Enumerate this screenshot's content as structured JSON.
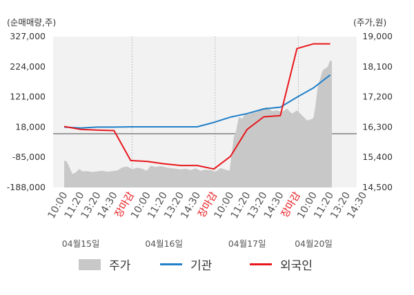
{
  "chart_data": {
    "type": "line",
    "left_axis": {
      "unit": "(순매매량,주)",
      "ticks": [
        "327,000",
        "224,000",
        "121,000",
        "18,000",
        "-85,000",
        "-188,000"
      ],
      "ylim": [
        -188000,
        327000
      ]
    },
    "right_axis": {
      "unit": "(주가,원)",
      "ticks": [
        "19,000",
        "18,100",
        "17,200",
        "16,300",
        "15,400",
        "14,500"
      ],
      "ylim": [
        14500,
        19000
      ]
    },
    "x_ticks": [
      {
        "label": "10:00",
        "red": false
      },
      {
        "label": "11:20",
        "red": false
      },
      {
        "label": "13:20",
        "red": false
      },
      {
        "label": "14:30",
        "red": false
      },
      {
        "label": "장마감",
        "red": true
      },
      {
        "label": "10:00",
        "red": false
      },
      {
        "label": "11:20",
        "red": false
      },
      {
        "label": "13:20",
        "red": false
      },
      {
        "label": "14:30",
        "red": false
      },
      {
        "label": "장마감",
        "red": true
      },
      {
        "label": "10:00",
        "red": false
      },
      {
        "label": "11:20",
        "red": false
      },
      {
        "label": "13:20",
        "red": false
      },
      {
        "label": "14:30",
        "red": false
      },
      {
        "label": "장마감",
        "red": true
      },
      {
        "label": "10:00",
        "red": false
      },
      {
        "label": "11:20",
        "red": false
      },
      {
        "label": "13:20",
        "red": false
      },
      {
        "label": "14:30",
        "red": false
      }
    ],
    "dates": [
      {
        "label": "04월15일",
        "x_index": 1
      },
      {
        "label": "04월16일",
        "x_index": 6
      },
      {
        "label": "04월17일",
        "x_index": 11
      },
      {
        "label": "04월20일",
        "x_index": 15
      }
    ],
    "series": [
      {
        "name": "주가",
        "color": "#c8c8c8",
        "axis": "right",
        "kind": "area",
        "x": [
          0,
          0.15,
          0.3,
          0.5,
          0.7,
          0.9,
          1.1,
          1.4,
          1.7,
          2.0,
          2.3,
          2.6,
          2.9,
          3.2,
          3.5,
          3.8,
          4.1,
          4.4,
          4.7,
          4.95,
          5.0,
          5.2,
          5.5,
          5.8,
          6.1,
          6.4,
          6.7,
          7.0,
          7.3,
          7.6,
          7.9,
          8.2,
          8.5,
          8.8,
          9.1,
          9.4,
          9.7,
          9.95,
          10.0,
          10.1,
          10.2,
          10.35,
          10.5,
          10.7,
          10.9,
          11.1,
          11.3,
          11.6,
          11.9,
          12.2,
          12.5,
          12.8,
          13.1,
          13.4,
          13.7,
          14.0,
          14.3,
          14.6,
          14.95,
          15.0,
          15.1,
          15.25,
          15.4,
          15.55,
          15.7,
          15.85,
          16.0,
          16.1
        ],
        "values": [
          15300,
          15280,
          15120,
          14900,
          14950,
          15050,
          14980,
          14990,
          14960,
          14980,
          15000,
          14970,
          14990,
          15010,
          15100,
          15120,
          15050,
          15090,
          15060,
          15000,
          15020,
          15150,
          15110,
          15140,
          15100,
          15080,
          15060,
          15040,
          15060,
          15020,
          15070,
          15000,
          15030,
          15020,
          14970,
          15080,
          15030,
          15000,
          15200,
          15600,
          16000,
          16200,
          16600,
          16550,
          16700,
          16680,
          16720,
          16750,
          16850,
          16900,
          16780,
          16800,
          16750,
          16850,
          16700,
          16800,
          16650,
          16500,
          16550,
          16600,
          16900,
          17500,
          17750,
          18000,
          18050,
          18100,
          18300,
          18250
        ]
      },
      {
        "name": "기관",
        "color": "#1f7fc8",
        "axis": "left",
        "kind": "line",
        "x": [
          0,
          1,
          2,
          3,
          4,
          5,
          6,
          7,
          8,
          9,
          10,
          11,
          12,
          13,
          14,
          15,
          16
        ],
        "values": [
          18000,
          15000,
          18000,
          18000,
          19000,
          19000,
          19000,
          19000,
          19000,
          34000,
          52000,
          64000,
          80000,
          86000,
          120000,
          152000,
          196000
        ]
      },
      {
        "name": "외국인",
        "color": "#e8161b",
        "axis": "left",
        "kind": "line",
        "x": [
          0,
          1,
          2,
          3,
          4,
          5,
          6,
          7,
          8,
          9,
          10,
          11,
          12,
          13,
          14,
          15,
          16
        ],
        "values": [
          20000,
          10000,
          8000,
          6000,
          -96000,
          -99000,
          -107000,
          -113000,
          -113000,
          -125000,
          -82000,
          10000,
          53000,
          57000,
          286000,
          302000,
          302000
        ]
      }
    ],
    "legend_position": "bottom",
    "grid": true
  }
}
